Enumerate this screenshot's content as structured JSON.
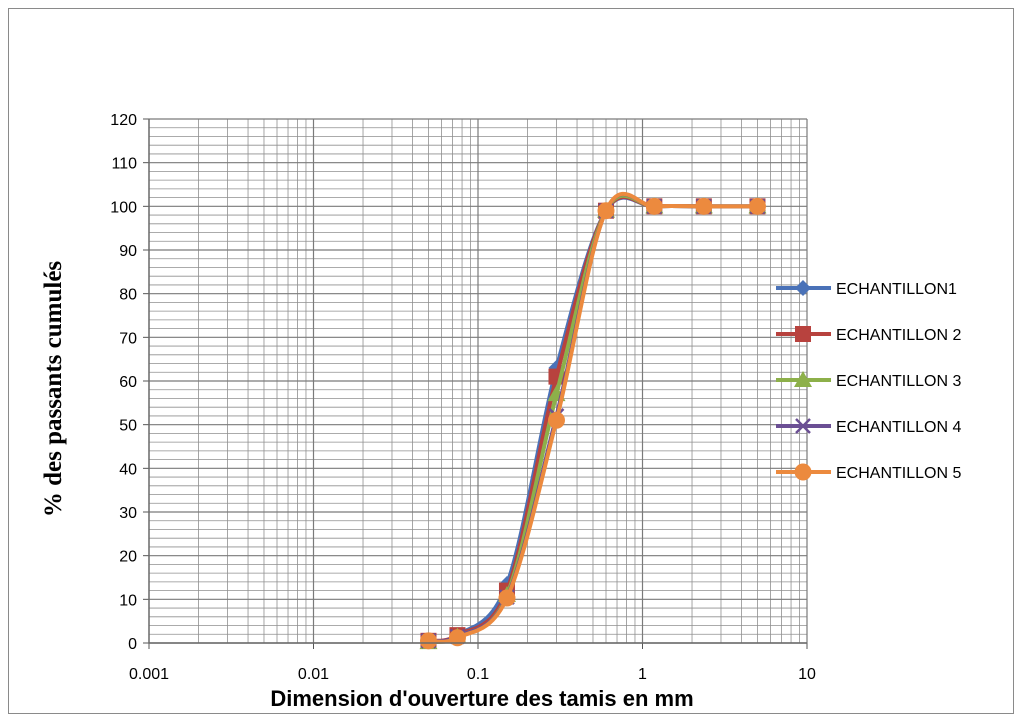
{
  "chart_data": {
    "type": "line",
    "title": "",
    "xlabel": "Dimension d'ouverture des tamis en mm",
    "ylabel": "% des passants cumulés",
    "x_scale": "log",
    "xlim": [
      0.001,
      10
    ],
    "ylim": [
      0,
      120
    ],
    "x_ticks": [
      "0.001",
      "0.01",
      "0.1",
      "1",
      "10"
    ],
    "y_ticks": [
      0,
      10,
      20,
      30,
      40,
      50,
      60,
      70,
      80,
      90,
      100,
      110,
      120
    ],
    "grid": true,
    "legend_position": "right",
    "series": [
      {
        "name": "ECHANTILLON1",
        "color": "#4a72b8",
        "marker": "diamond",
        "x": [
          0.05,
          0.075,
          0.15,
          0.3,
          0.6,
          1.18,
          2.36,
          5
        ],
        "y": [
          0.5,
          1.8,
          13.5,
          63,
          99,
          100,
          100,
          100
        ]
      },
      {
        "name": "ECHANTILLON 2",
        "color": "#b8423e",
        "marker": "square",
        "x": [
          0.05,
          0.075,
          0.15,
          0.3,
          0.6,
          1.18,
          2.36,
          5
        ],
        "y": [
          0.5,
          1.8,
          12,
          61,
          99,
          100,
          100,
          100
        ]
      },
      {
        "name": "ECHANTILLON 3",
        "color": "#8db04a",
        "marker": "triangle",
        "x": [
          0.05,
          0.075,
          0.15,
          0.3,
          0.6,
          1.18,
          2.36,
          5
        ],
        "y": [
          0.2,
          1.5,
          11,
          57,
          99,
          100,
          100,
          100
        ]
      },
      {
        "name": "ECHANTILLON 4",
        "color": "#6b4f94",
        "marker": "x",
        "x": [
          0.05,
          0.075,
          0.15,
          0.3,
          0.6,
          1.18,
          2.36,
          5
        ],
        "y": [
          0.5,
          1.5,
          10.5,
          52,
          99,
          100,
          100,
          100
        ]
      },
      {
        "name": "ECHANTILLON 5",
        "color": "#ec8a3e",
        "marker": "circle",
        "x": [
          0.05,
          0.075,
          0.15,
          0.3,
          0.6,
          1.18,
          2.36,
          5
        ],
        "y": [
          0.5,
          1.2,
          10.3,
          51,
          99,
          100,
          100,
          100
        ]
      }
    ]
  }
}
